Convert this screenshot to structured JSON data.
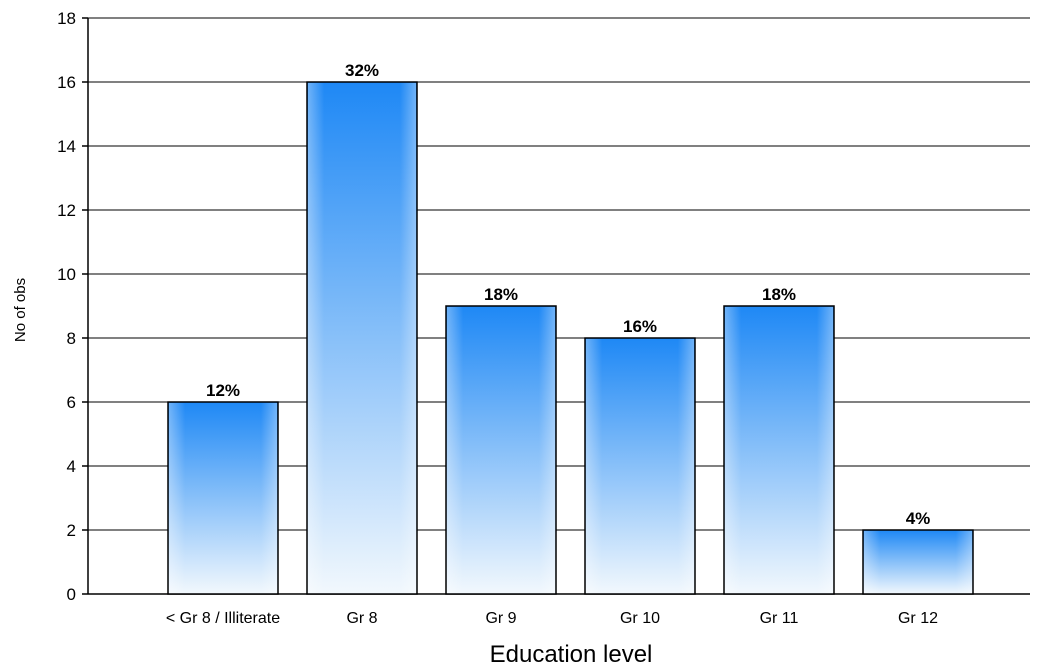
{
  "chart_data": {
    "type": "bar",
    "title": "",
    "xlabel": "Education level",
    "ylabel": "No of obs",
    "categories": [
      "< Gr 8 / Illiterate",
      "Gr 8",
      "Gr 9",
      "Gr 10",
      "Gr 11",
      "Gr 12"
    ],
    "values": [
      6,
      16,
      9,
      8,
      9,
      2
    ],
    "data_labels": [
      "12%",
      "32%",
      "18%",
      "16%",
      "18%",
      "4%"
    ],
    "ylim": [
      0,
      18
    ],
    "yticks": [
      0,
      2,
      4,
      6,
      8,
      10,
      12,
      14,
      16,
      18
    ],
    "grid": "horizontal",
    "bar_color_top": "#1e88f5",
    "bar_color_bottom": "#f2f8fd",
    "bar_outline": "#000000"
  }
}
